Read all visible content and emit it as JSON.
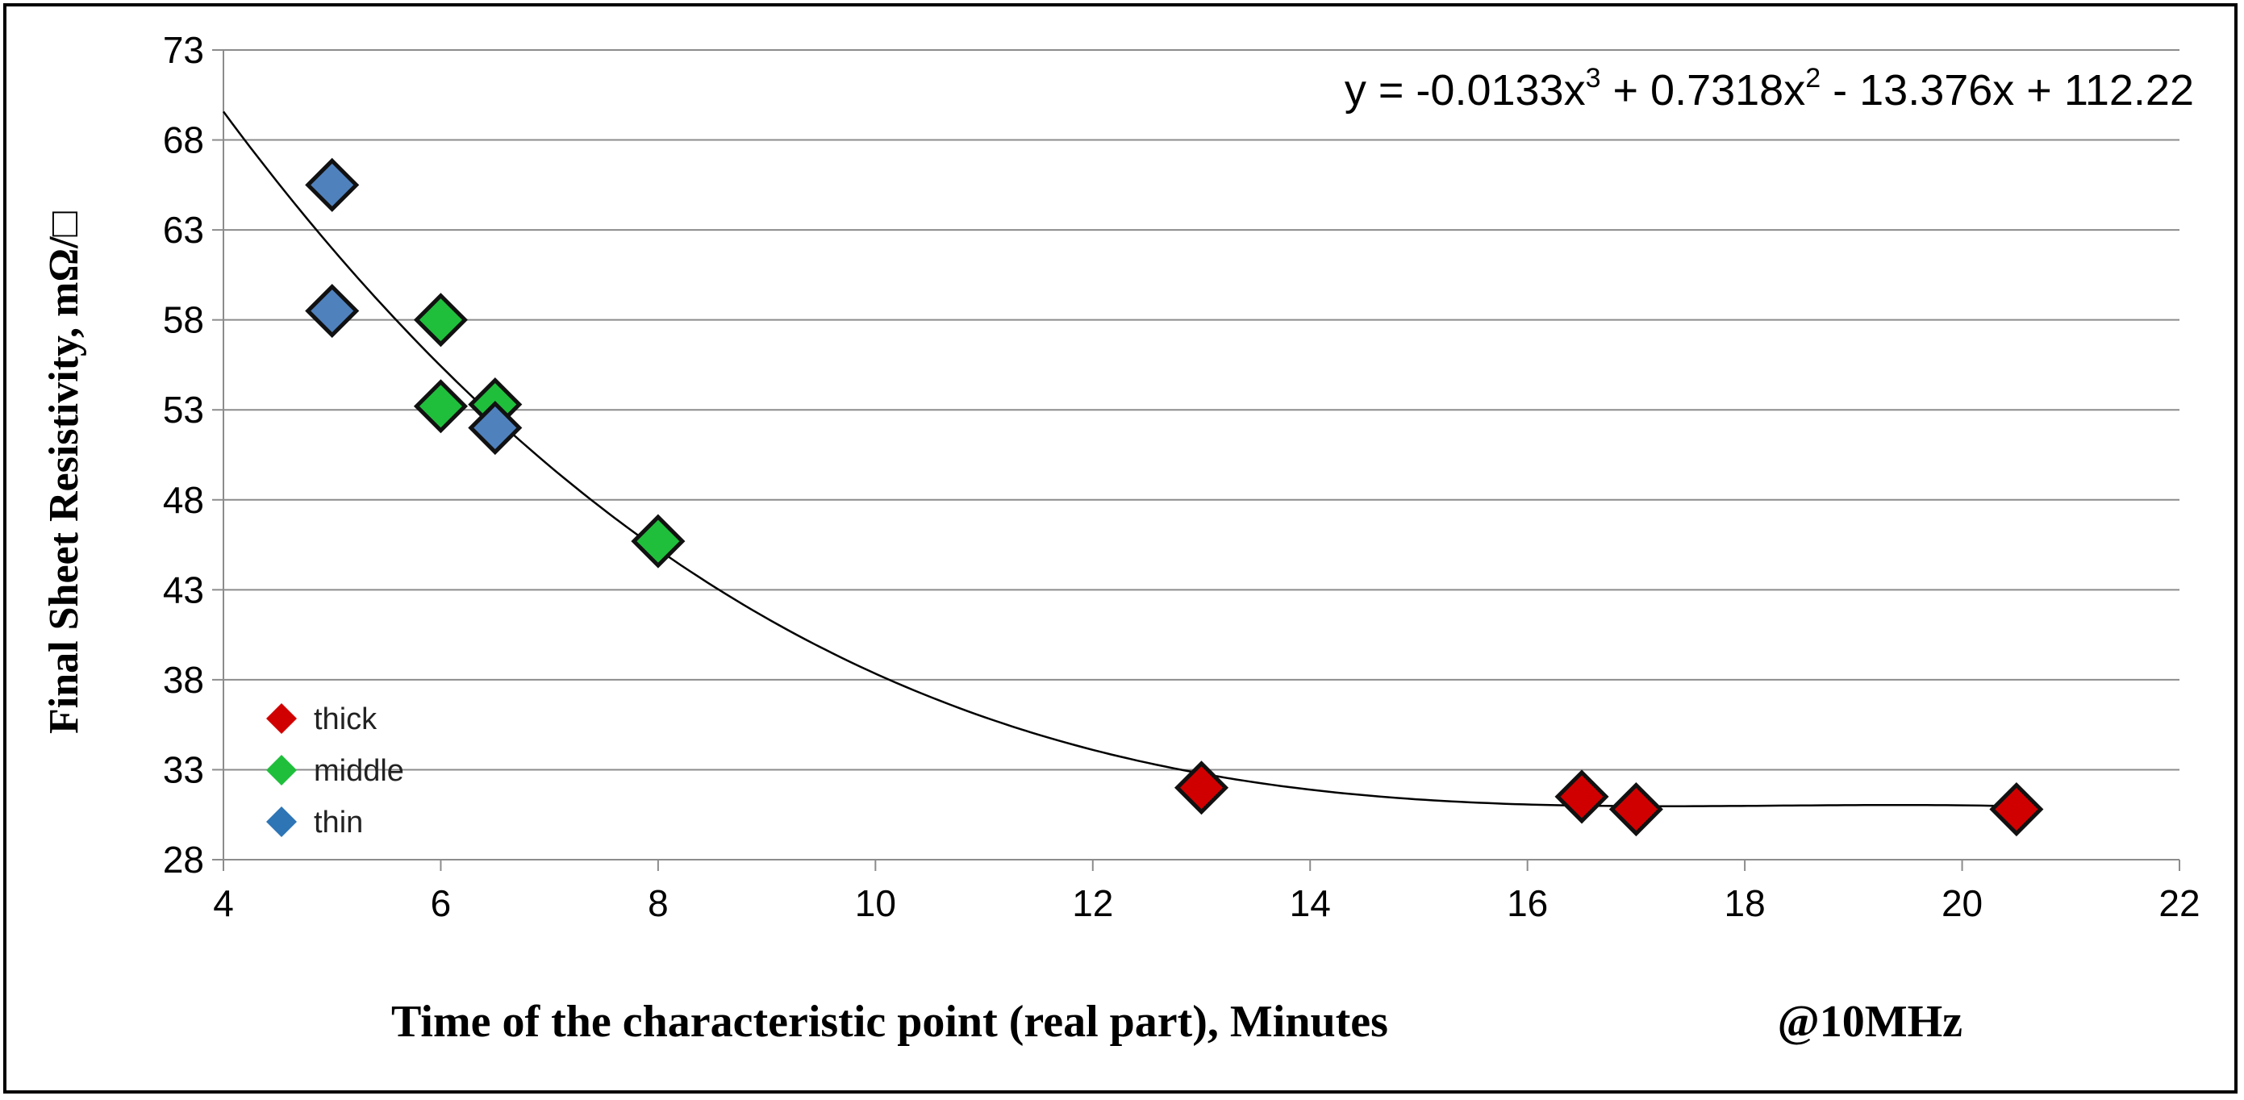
{
  "chart_data": {
    "type": "scatter",
    "xlabel": "Time of the characteristic point (real part), Minutes",
    "xlabel_note": "@10MHz",
    "ylabel": "Final Sheet Resistivity, mΩ/□",
    "xlim": [
      4,
      22
    ],
    "ylim": [
      28,
      73
    ],
    "x_ticks": [
      4,
      6,
      8,
      10,
      12,
      14,
      16,
      18,
      20,
      22
    ],
    "y_ticks": [
      28,
      33,
      38,
      43,
      48,
      53,
      58,
      63,
      68,
      73
    ],
    "grid": "horizontal",
    "legend_position": "left",
    "series": [
      {
        "name": "thick",
        "color": "#d10000",
        "points": [
          [
            13,
            32
          ],
          [
            16.5,
            31.5
          ],
          [
            17,
            30.8
          ],
          [
            20.5,
            30.8
          ]
        ]
      },
      {
        "name": "middle",
        "color": "#1fbf3c",
        "points": [
          [
            6,
            58
          ],
          [
            6,
            53.2
          ],
          [
            6.5,
            53.3
          ],
          [
            8,
            45.7
          ]
        ]
      },
      {
        "name": "thin",
        "color": "#4f81bd",
        "legend_color": "#2e75b6",
        "points": [
          [
            5,
            65.5
          ],
          [
            5,
            58.5
          ],
          [
            6.5,
            52
          ]
        ]
      }
    ],
    "trendline": {
      "type": "polynomial",
      "order": 3,
      "coefficients": [
        -0.0133,
        0.7318,
        -13.376,
        112.22
      ],
      "x_range": [
        4,
        20.5
      ],
      "color": "#000000"
    },
    "equation_label": {
      "prefix": "y = -0.0133x",
      "exp1": "3",
      "mid1": " + 0.7318x",
      "exp2": "2",
      "suffix": " - 13.376x + 112.22"
    }
  }
}
